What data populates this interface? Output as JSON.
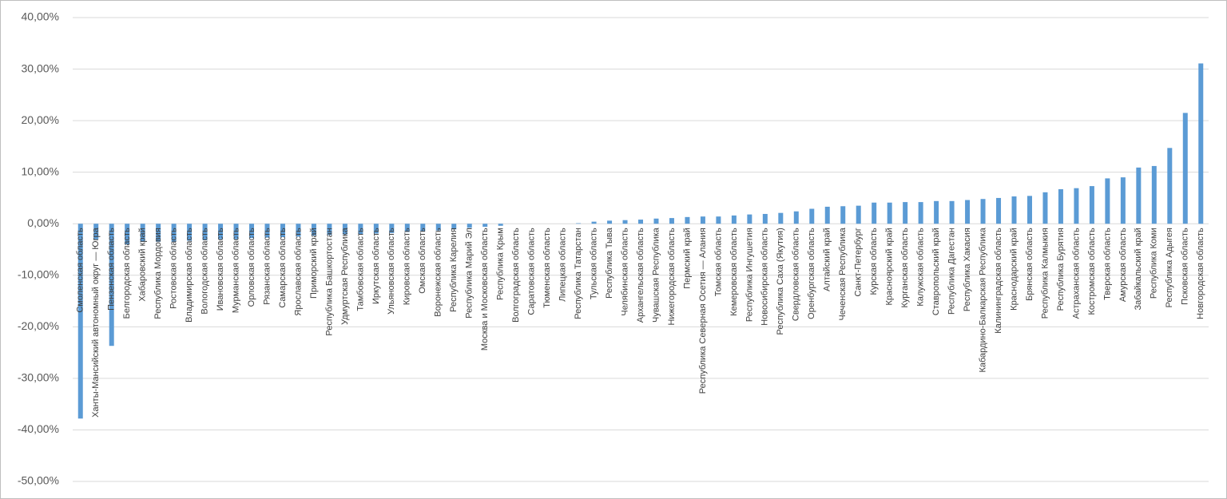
{
  "chart_data": {
    "type": "bar",
    "categories": [
      "Смоленская область",
      "Ханты-Мансийский автономный округ — Югра",
      "Пензенская область",
      "Белгородская область",
      "Хабаровский край",
      "Республика Мордовия",
      "Ростовская область",
      "Владимирская область",
      "Вологодская область",
      "Ивановская область",
      "Мурманская область",
      "Орловская область",
      "Рязанская область",
      "Самарская область",
      "Ярославская область",
      "Приморский край",
      "Республика Башкортостан",
      "Удмуртская Республика",
      "Тамбовская область",
      "Иркутская область",
      "Ульяновская область",
      "Кировская область",
      "Омская область",
      "Воронежская область",
      "Республика Карелия",
      "Республика Марий Эл",
      "Москва и Московская область",
      "Республика Крым",
      "Волгоградская область",
      "Саратовская область",
      "Тюменская область",
      "Липецкая область",
      "Республика Татарстан",
      "Тульская область",
      "Республика Тыва",
      "Челябинская область",
      "Архангельская область",
      "Чувашская Республика",
      "Нижегородская область",
      "Пермский край",
      "Республика Северная Осетия — Алания",
      "Томская область",
      "Кемеровская область",
      "Республика Ингушетия",
      "Новосибирская область",
      "Республика Саха (Якутия)",
      "Свердловская область",
      "Оренбургская область",
      "Алтайский край",
      "Чеченская Республика",
      "Санкт-Петербург",
      "Курская область",
      "Красноярский край",
      "Курганская область",
      "Калужская область",
      "Ставропольский край",
      "Республика Дагестан",
      "Республика Хакасия",
      "Кабардино-Балкарская Республика",
      "Калининградская область",
      "Краснодарский край",
      "Брянская область",
      "Республика Калмыкия",
      "Республика Бурятия",
      "Астраханская область",
      "Костромская область",
      "Тверская область",
      "Амурская область",
      "Забайкальский край",
      "Республика Коми",
      "Республика Адыгея",
      "Псковская область",
      "Новгородская область"
    ],
    "values": [
      -37.8,
      -3.0,
      -23.7,
      -4.0,
      -3.5,
      -3.5,
      -3.5,
      -3.3,
      -3.2,
      -3.0,
      -3.0,
      -2.8,
      -2.7,
      -2.6,
      -2.5,
      -2.3,
      -2.2,
      -2.1,
      -2.0,
      -1.9,
      -1.8,
      -1.6,
      -1.5,
      -1.3,
      -1.1,
      -0.8,
      -0.6,
      -0.4,
      0,
      0,
      0,
      0,
      0.1,
      0.4,
      0.6,
      0.7,
      0.8,
      1.0,
      1.1,
      1.3,
      1.4,
      1.4,
      1.6,
      1.8,
      1.9,
      2.1,
      2.4,
      2.9,
      3.3,
      3.4,
      3.5,
      4.1,
      4.1,
      4.2,
      4.2,
      4.4,
      4.4,
      4.6,
      4.8,
      5.0,
      5.3,
      5.4,
      6.1,
      6.7,
      6.9,
      7.3,
      8.8,
      9.0,
      10.9,
      11.2,
      14.7,
      21.5,
      31.1
    ],
    "color": "#5b9bd5",
    "ylim": [
      -50,
      40
    ],
    "yticks": [
      {
        "value": -50,
        "label": "-50,00%"
      },
      {
        "value": -40,
        "label": "-40,00%"
      },
      {
        "value": -30,
        "label": "-30,00%"
      },
      {
        "value": -20,
        "label": "-20,00%"
      },
      {
        "value": -10,
        "label": "-10,00%"
      },
      {
        "value": 0,
        "label": "0,00%"
      },
      {
        "value": 10,
        "label": "10,00%"
      },
      {
        "value": 20,
        "label": "20,00%"
      },
      {
        "value": 30,
        "label": "30,00%"
      },
      {
        "value": 40,
        "label": "40,00%"
      }
    ],
    "grid": true
  }
}
